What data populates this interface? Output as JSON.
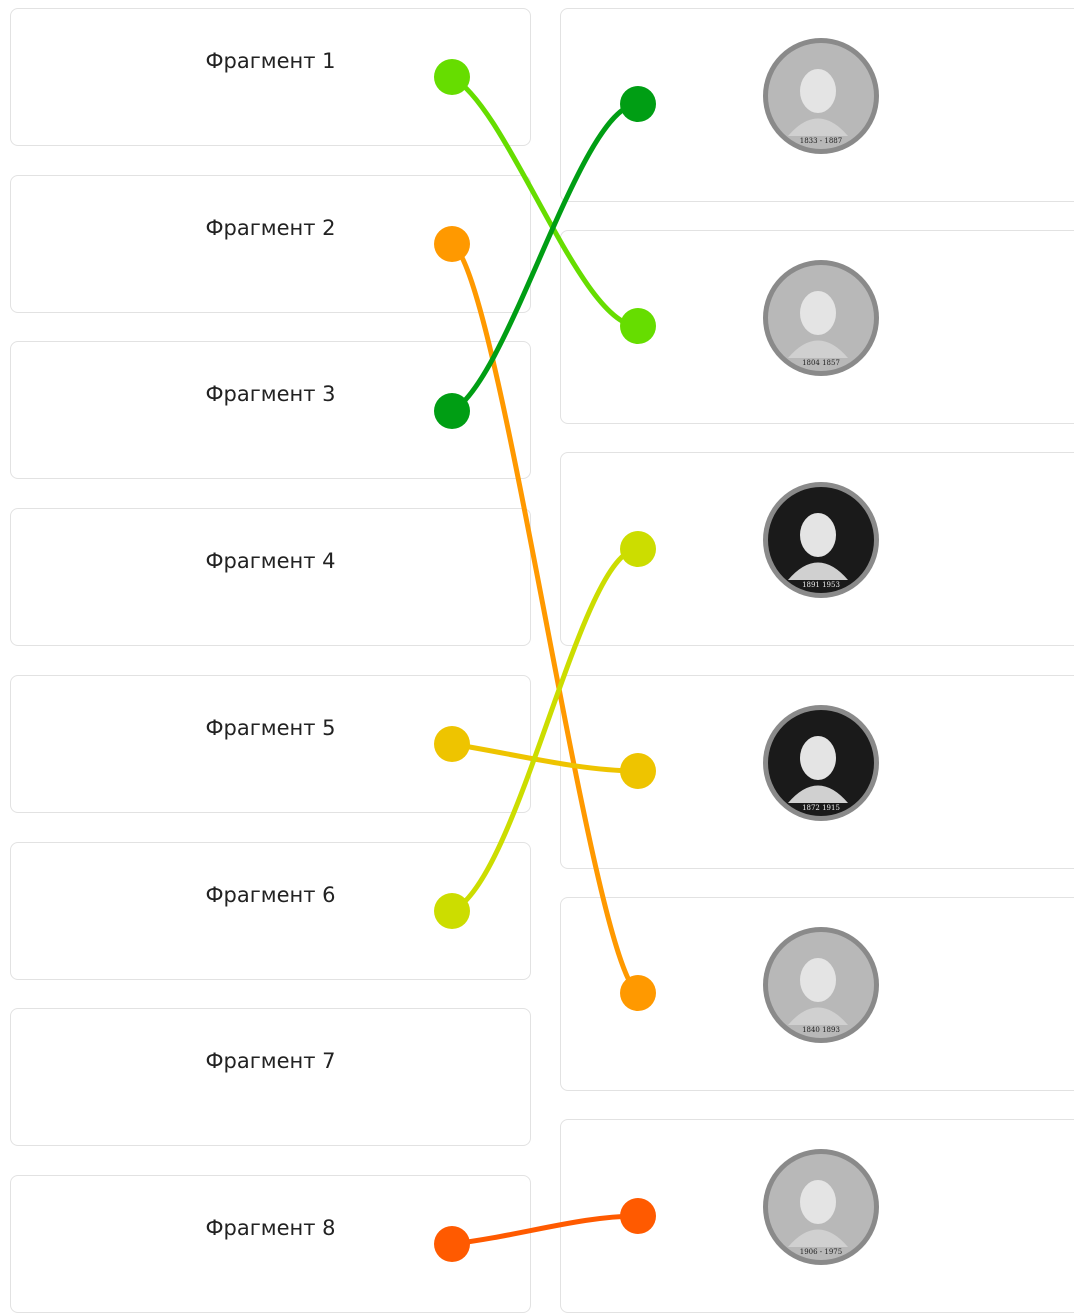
{
  "fragments": [
    {
      "label": "Фрагмент 1"
    },
    {
      "label": "Фрагмент 2"
    },
    {
      "label": "Фрагмент 3"
    },
    {
      "label": "Фрагмент 4"
    },
    {
      "label": "Фрагмент 5"
    },
    {
      "label": "Фрагмент 6"
    },
    {
      "label": "Фрагмент 7"
    },
    {
      "label": "Фрагмент 8"
    }
  ],
  "coins": [
    {
      "years": "1833 - 1887"
    },
    {
      "years": "1804 1857"
    },
    {
      "years": "1891 1953"
    },
    {
      "years": "1872 1915"
    },
    {
      "years": "1840 1893"
    },
    {
      "years": "1906 - 1975"
    }
  ]
}
